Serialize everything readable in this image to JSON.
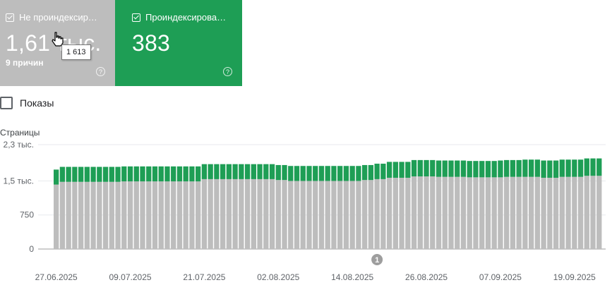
{
  "cards": {
    "not_indexed": {
      "label": "Не проиндексир…",
      "value": "1,61 тыс.",
      "sub": "9 причин",
      "color": "#bdbdbd"
    },
    "indexed": {
      "label": "Проиндексирова…",
      "value": "383",
      "color": "#1e9e55"
    }
  },
  "tooltip": "1 613",
  "impressions_label": "Показы",
  "chart_data": {
    "type": "bar",
    "stacked": true,
    "ylabel": "Страницы",
    "ylim": [
      0,
      2300
    ],
    "yticks": [
      0,
      750,
      1500,
      2300
    ],
    "ytick_labels": [
      "0",
      "750",
      "1,5 тыс.",
      "2,3 тыс."
    ],
    "xtick_labels": [
      "27.06.2025",
      "09.07.2025",
      "21.07.2025",
      "02.08.2025",
      "14.08.2025",
      "26.08.2025",
      "07.09.2025",
      "19.09.2025"
    ],
    "xtick_index": [
      0,
      12,
      24,
      36,
      48,
      60,
      72,
      84
    ],
    "annotation": {
      "label": "1",
      "index": 52
    },
    "grid": true,
    "series": [
      {
        "color": "#bdbdbd",
        "values": [
          1420,
          1480,
          1480,
          1480,
          1480,
          1480,
          1480,
          1480,
          1480,
          1480,
          1480,
          1490,
          1490,
          1490,
          1490,
          1490,
          1490,
          1490,
          1490,
          1490,
          1490,
          1490,
          1490,
          1490,
          1540,
          1540,
          1540,
          1540,
          1540,
          1540,
          1540,
          1540,
          1540,
          1540,
          1540,
          1540,
          1520,
          1520,
          1500,
          1500,
          1500,
          1500,
          1500,
          1500,
          1500,
          1500,
          1500,
          1500,
          1500,
          1500,
          1520,
          1520,
          1540,
          1540,
          1570,
          1570,
          1570,
          1570,
          1600,
          1600,
          1600,
          1600,
          1590,
          1590,
          1590,
          1590,
          1590,
          1580,
          1580,
          1580,
          1580,
          1580,
          1580,
          1590,
          1590,
          1590,
          1590,
          1590,
          1590,
          1570,
          1570,
          1570,
          1590,
          1590,
          1590,
          1590,
          1613,
          1613,
          1613
        ]
      },
      {
        "color": "#1e9e55",
        "values": [
          330,
          330,
          330,
          330,
          330,
          330,
          330,
          330,
          330,
          330,
          330,
          330,
          330,
          330,
          330,
          330,
          330,
          330,
          330,
          330,
          330,
          330,
          330,
          330,
          330,
          330,
          330,
          330,
          330,
          330,
          330,
          330,
          330,
          330,
          330,
          330,
          330,
          330,
          330,
          330,
          330,
          330,
          330,
          330,
          330,
          330,
          330,
          330,
          330,
          330,
          330,
          330,
          340,
          340,
          350,
          350,
          350,
          350,
          360,
          360,
          360,
          360,
          360,
          360,
          360,
          360,
          360,
          360,
          360,
          360,
          360,
          360,
          370,
          370,
          370,
          370,
          380,
          380,
          380,
          380,
          380,
          380,
          380,
          380,
          380,
          380,
          383,
          383,
          383
        ]
      }
    ]
  }
}
